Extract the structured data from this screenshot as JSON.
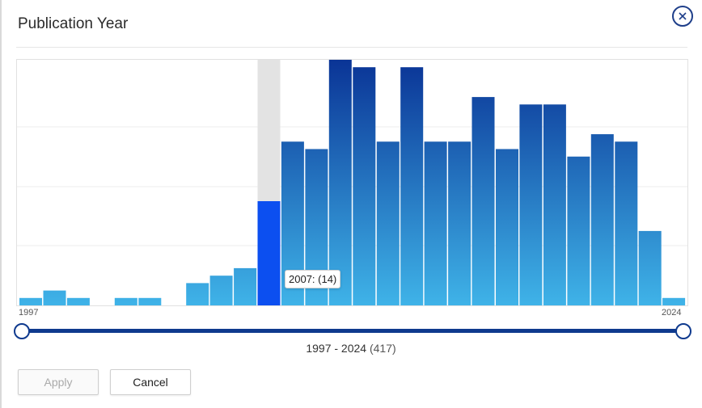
{
  "dialog": {
    "title": "Publication Year",
    "close_icon": "close-icon"
  },
  "chart_data": {
    "type": "bar",
    "categories": [
      "1997",
      "1998",
      "1999",
      "2000",
      "2001",
      "2002",
      "2003",
      "2004",
      "2005",
      "2006",
      "2007",
      "2008",
      "2009",
      "2010",
      "2011",
      "2012",
      "2013",
      "2014",
      "2015",
      "2016",
      "2017",
      "2018",
      "2019",
      "2020",
      "2021",
      "2022",
      "2023",
      "2024"
    ],
    "values": [
      1,
      2,
      1,
      0,
      1,
      1,
      0,
      3,
      4,
      5,
      14,
      22,
      21,
      33,
      32,
      22,
      32,
      22,
      22,
      28,
      21,
      27,
      27,
      20,
      23,
      22,
      10,
      1
    ],
    "highlighted_category": "2007",
    "colors": {
      "bar_top": "#0a3496",
      "bar_bottom": "#3fb3e8",
      "highlight_bar": "#0c4ff0",
      "highlight_column": "#e3e3e3",
      "grid": "#eeeeee"
    },
    "grid": true
  },
  "axis": {
    "min_label": "1997",
    "max_label": "2024"
  },
  "tooltip": {
    "text": "2007: (14)"
  },
  "slider": {
    "min_value": "1997",
    "max_value": "2024"
  },
  "range_summary": {
    "range": "1997 - 2024",
    "count": "(417)"
  },
  "buttons": {
    "apply": "Apply",
    "cancel": "Cancel"
  }
}
